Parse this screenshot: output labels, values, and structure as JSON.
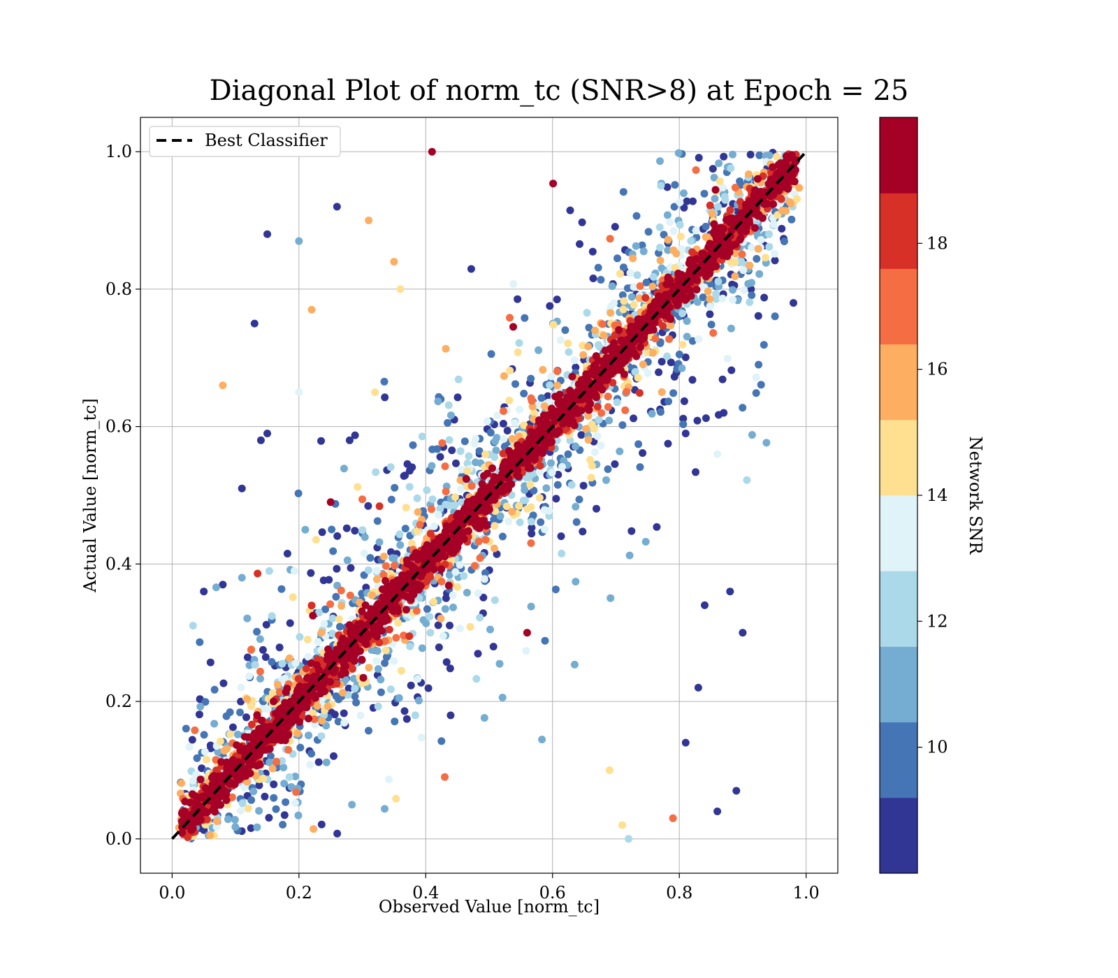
{
  "chart_data": {
    "type": "scatter",
    "title": "Diagonal Plot of norm_tc (SNR>8) at Epoch = 25",
    "xlabel": "Observed Value [norm_tc]",
    "ylabel": "Actual Value [norm_tc]",
    "xlim": [
      -0.05,
      1.05
    ],
    "ylim": [
      -0.05,
      1.05
    ],
    "xticks": [
      "0.0",
      "0.2",
      "0.4",
      "0.6",
      "0.8",
      "1.0"
    ],
    "yticks": [
      "0.0",
      "0.2",
      "0.4",
      "0.6",
      "0.8",
      "1.0"
    ],
    "grid": true,
    "legend": {
      "placement": "top-left",
      "entries": [
        "Best Classifier"
      ]
    },
    "reference_line": {
      "name": "Best Classifier",
      "style": "dashed",
      "color": "#000000",
      "x": [
        0,
        1
      ],
      "y": [
        0,
        1
      ]
    },
    "colorbar": {
      "label": "Network SNR",
      "range": [
        8,
        20
      ],
      "ticks": [
        "10",
        "12",
        "14",
        "16",
        "18"
      ],
      "tick_values": [
        10,
        12,
        14,
        16,
        18
      ],
      "colors": [
        "#313695",
        "#4575b4",
        "#74add1",
        "#abd9e9",
        "#e0f3f8",
        "#fee090",
        "#fdae61",
        "#f46d43",
        "#d73027",
        "#a50026"
      ]
    },
    "series": [
      {
        "color_by": "Network SNR",
        "points": [
          [
            0.98,
            0.78,
            8.5
          ],
          [
            0.15,
            0.88,
            8.5
          ],
          [
            0.2,
            0.87,
            11.5
          ],
          [
            0.13,
            0.75,
            8.5
          ],
          [
            0.08,
            0.66,
            15.5
          ],
          [
            0.22,
            0.77,
            15.5
          ],
          [
            0.35,
            0.84,
            15.5
          ],
          [
            0.31,
            0.9,
            15.5
          ],
          [
            0.26,
            0.92,
            8.5
          ],
          [
            0.41,
            1.0,
            19.0
          ],
          [
            0.11,
            0.51,
            8.5
          ],
          [
            0.14,
            0.58,
            8.5
          ],
          [
            0.15,
            0.59,
            8.5
          ],
          [
            0.05,
            0.36,
            8.5
          ],
          [
            0.08,
            0.37,
            8.5
          ],
          [
            0.11,
            0.38,
            11.5
          ],
          [
            0.28,
            0.58,
            8.5
          ],
          [
            0.25,
            0.49,
            19.0
          ],
          [
            0.9,
            0.3,
            8.5
          ],
          [
            0.88,
            0.36,
            8.5
          ],
          [
            0.84,
            0.34,
            8.5
          ],
          [
            0.87,
            0.62,
            8.5
          ],
          [
            0.86,
            0.56,
            13.5
          ],
          [
            0.81,
            0.59,
            8.5
          ],
          [
            0.83,
            0.22,
            8.5
          ],
          [
            0.81,
            0.14,
            8.5
          ],
          [
            0.79,
            0.03,
            16.5
          ],
          [
            0.86,
            0.04,
            8.5
          ],
          [
            0.89,
            0.07,
            8.5
          ],
          [
            0.72,
            0.0,
            12.5
          ],
          [
            0.71,
            0.02,
            14.5
          ],
          [
            0.56,
            0.3,
            19.0
          ],
          [
            0.16,
            0.2,
            19.0
          ],
          [
            0.4,
            0.41,
            15.5
          ],
          [
            0.2,
            0.65,
            13.5
          ],
          [
            0.21,
            0.45,
            10.5
          ],
          [
            0.32,
            0.65,
            14.5
          ],
          [
            0.36,
            0.8,
            14.5
          ],
          [
            0.69,
            0.1,
            14.5
          ],
          [
            0.43,
            0.09,
            16.5
          ]
        ]
      }
    ]
  }
}
